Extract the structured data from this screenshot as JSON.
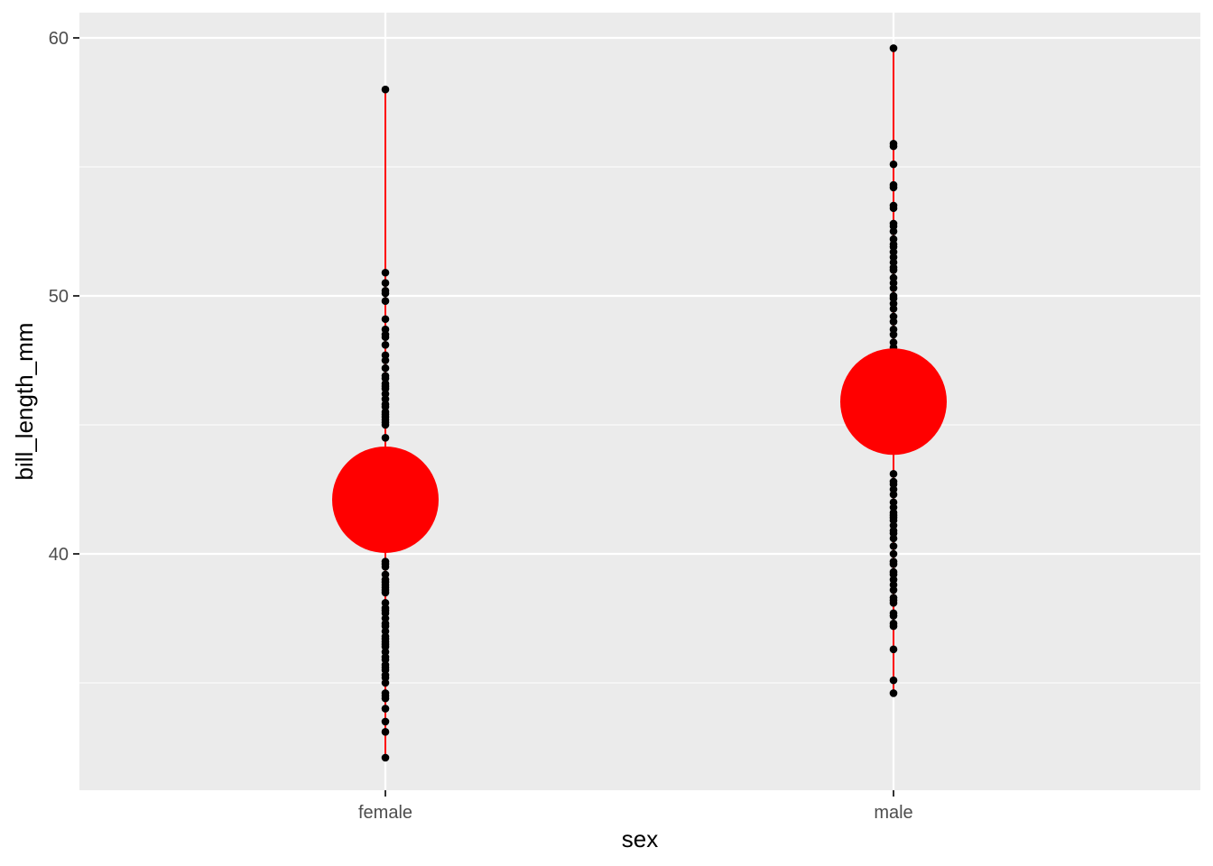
{
  "chart_data": {
    "type": "scatter",
    "title": "",
    "xlabel": "sex",
    "ylabel": "bill_length_mm",
    "categories": [
      "female",
      "male"
    ],
    "ylim": [
      31.0,
      61.0
    ],
    "y_ticks": [
      "40",
      "50",
      "60"
    ],
    "grid": true,
    "legend": "none",
    "colors": {
      "panel": "#ebebeb",
      "grid": "#ffffff",
      "points": "#000000",
      "range_line": "#ff0000",
      "mean_marker": "#ff0000",
      "tick_label": "#4d4d4d"
    },
    "series": [
      {
        "category": "female",
        "mean": 42.1,
        "min": 32.1,
        "max": 58.0,
        "values": [
          32.1,
          33.1,
          33.5,
          34.0,
          34.4,
          34.5,
          34.6,
          35.0,
          35.2,
          35.3,
          35.5,
          35.6,
          35.7,
          35.9,
          36.0,
          36.2,
          36.4,
          36.5,
          36.6,
          36.7,
          36.8,
          37.0,
          37.2,
          37.3,
          37.5,
          37.7,
          37.8,
          37.9,
          38.1,
          38.5,
          38.6,
          38.7,
          38.8,
          38.9,
          39.0,
          39.2,
          39.5,
          39.6,
          39.7,
          40.2,
          40.3,
          40.5,
          40.6,
          40.9,
          41.1,
          41.3,
          41.5,
          41.7,
          42.0,
          42.2,
          42.4,
          42.5,
          42.7,
          42.9,
          43.2,
          43.3,
          43.5,
          43.8,
          44.5,
          45.0,
          45.1,
          45.2,
          45.3,
          45.4,
          45.5,
          45.7,
          45.8,
          46.0,
          46.2,
          46.4,
          46.5,
          46.6,
          46.8,
          46.9,
          47.2,
          47.5,
          47.7,
          48.1,
          48.4,
          48.5,
          48.7,
          49.1,
          49.8,
          50.1,
          50.2,
          50.5,
          50.9,
          58.0
        ]
      },
      {
        "category": "male",
        "mean": 45.9,
        "min": 34.6,
        "max": 59.6,
        "values": [
          34.6,
          35.1,
          36.3,
          37.2,
          37.3,
          37.6,
          37.7,
          38.1,
          38.2,
          38.3,
          38.6,
          38.8,
          39.0,
          39.2,
          39.3,
          39.6,
          39.7,
          40.0,
          40.3,
          40.6,
          40.8,
          40.9,
          41.1,
          41.3,
          41.4,
          41.5,
          41.6,
          41.8,
          42.0,
          42.3,
          42.5,
          42.7,
          42.8,
          43.1,
          44.0,
          45.0,
          46.0,
          47.0,
          48.0,
          48.2,
          48.5,
          48.7,
          49.0,
          49.2,
          49.5,
          49.7,
          49.9,
          50.0,
          50.3,
          50.5,
          50.7,
          51.0,
          51.1,
          51.3,
          51.5,
          51.7,
          51.9,
          52.0,
          52.2,
          52.5,
          52.7,
          52.8,
          53.4,
          53.5,
          54.2,
          54.3,
          55.1,
          55.8,
          55.9,
          59.6
        ]
      }
    ]
  }
}
